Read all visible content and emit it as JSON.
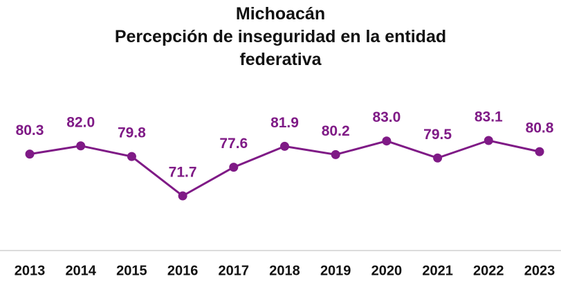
{
  "chart_data": {
    "type": "line",
    "title": "Michoacán",
    "subtitle": "Percepción de inseguridad en la entidad federativa",
    "categories": [
      "2013",
      "2014",
      "2015",
      "2016",
      "2017",
      "2018",
      "2019",
      "2020",
      "2021",
      "2022",
      "2023"
    ],
    "series": [
      {
        "color": "#7f1a86",
        "values": [
          80.3,
          82.0,
          79.8,
          71.7,
          77.6,
          81.9,
          80.2,
          83.0,
          79.5,
          83.1,
          80.8
        ],
        "value_labels": [
          "80.3",
          "82.0",
          "79.8",
          "71.7",
          "77.6",
          "81.9",
          "80.2",
          "83.0",
          "79.5",
          "83.1",
          "80.8"
        ]
      }
    ]
  }
}
